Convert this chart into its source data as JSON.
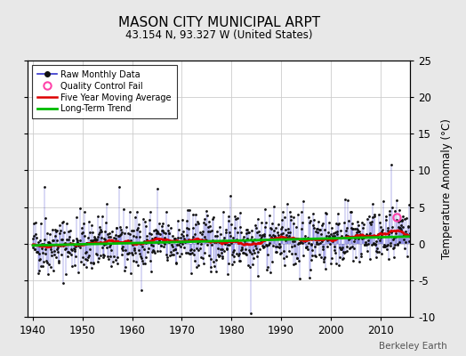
{
  "title": "MASON CITY MUNICIPAL ARPT",
  "subtitle": "43.154 N, 93.327 W (United States)",
  "ylabel": "Temperature Anomaly (°C)",
  "watermark": "Berkeley Earth",
  "year_start": 1940,
  "year_end": 2015,
  "ylim": [
    -10,
    25
  ],
  "yticks": [
    -10,
    -5,
    0,
    5,
    10,
    15,
    20,
    25
  ],
  "background_color": "#e8e8e8",
  "plot_bg_color": "#ffffff",
  "grid_color": "#cccccc",
  "raw_line_color": "#3333cc",
  "raw_dot_color": "#111111",
  "ma_color": "#dd0000",
  "trend_color": "#00bb00",
  "qc_color": "#ff44aa",
  "seed": 42,
  "n_months": 912,
  "trend_slope": 0.016,
  "trend_intercept": -0.25,
  "ma_window": 60,
  "qc_point_year": 2013.3,
  "qc_point_value": 3.6
}
